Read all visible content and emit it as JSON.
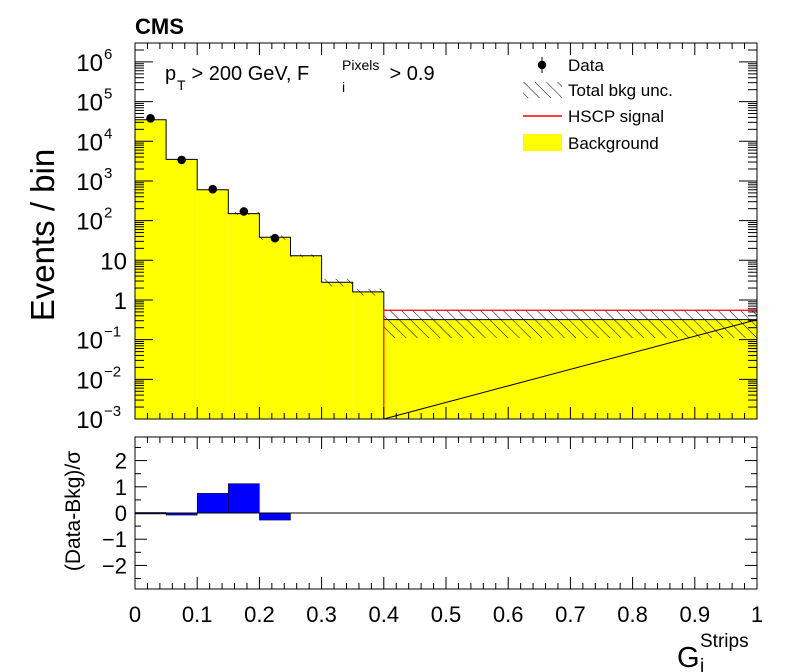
{
  "chart_data": [
    {
      "type": "bar",
      "panel": "main",
      "experiment_label": "CMS",
      "title": "",
      "annotation": {
        "prefix": "p",
        "prefix_sub": "T",
        "middle": " > 200 GeV, F",
        "f_sup": "Pixels",
        "f_sub": "i",
        "suffix": " > 0.9"
      },
      "ylabel": "Events / bin",
      "xlim": [
        0,
        1
      ],
      "ylim": [
        0.001,
        3000000
      ],
      "yscale": "log",
      "bin_edges": [
        0,
        0.05,
        0.1,
        0.15,
        0.2,
        0.25,
        0.3,
        0.35,
        0.4,
        1.0
      ],
      "legend_position": "top-right",
      "legend": [
        {
          "label": "Data",
          "kind": "marker"
        },
        {
          "label": "Total bkg unc.",
          "kind": "hatch"
        },
        {
          "label": "HSCP signal",
          "kind": "line"
        },
        {
          "label": "Background",
          "kind": "fill"
        }
      ],
      "y_ticks": [
        {
          "value": 0.001,
          "base": "10",
          "exp": "−3"
        },
        {
          "value": 0.01,
          "base": "10",
          "exp": "−2"
        },
        {
          "value": 0.1,
          "base": "10",
          "exp": "−1"
        },
        {
          "value": 1,
          "base": "1",
          "exp": ""
        },
        {
          "value": 10,
          "base": "10",
          "exp": ""
        },
        {
          "value": 100,
          "base": "10",
          "exp": "2"
        },
        {
          "value": 1000,
          "base": "10",
          "exp": "3"
        },
        {
          "value": 10000,
          "base": "10",
          "exp": "4"
        },
        {
          "value": 100000,
          "base": "10",
          "exp": "5"
        },
        {
          "value": 1000000,
          "base": "10",
          "exp": "6"
        }
      ],
      "series": [
        {
          "name": "Background",
          "kind": "hist",
          "color": "#ffff00",
          "values": [
            35000,
            3500,
            600,
            150,
            38,
            13,
            2.8,
            1.6,
            0.32
          ]
        },
        {
          "name": "Total bkg unc.",
          "kind": "band",
          "color": "#000000",
          "low": [
            35000,
            3500,
            600,
            140,
            33,
            12,
            2.2,
            1.3,
            0.11
          ],
          "high": [
            35000,
            3500,
            600,
            165,
            42,
            14,
            3.4,
            1.9,
            0.55
          ]
        },
        {
          "name": "HSCP signal",
          "kind": "line",
          "color": "#ff0000",
          "edges": [
            0.4,
            1.0
          ],
          "values": [
            0.55
          ]
        },
        {
          "name": "Data",
          "kind": "points",
          "color": "#000000",
          "x": [
            0.025,
            0.075,
            0.125,
            0.175,
            0.225
          ],
          "y": [
            38000,
            3400,
            620,
            170,
            36
          ]
        }
      ]
    },
    {
      "type": "bar",
      "panel": "ratio",
      "ylabel": "(Data-Bkg)/σ",
      "xlabel": {
        "base": "G",
        "sub": "i",
        "sup": "Strips"
      },
      "xlim": [
        0,
        1
      ],
      "ylim": [
        -2.9,
        2.9
      ],
      "x_ticks": [
        "0",
        "0.1",
        "0.2",
        "0.3",
        "0.4",
        "0.5",
        "0.6",
        "0.7",
        "0.8",
        "0.9",
        "1"
      ],
      "y_ticks": [
        "−2",
        "−1",
        "0",
        "1",
        "2"
      ],
      "bin_edges": [
        0,
        0.05,
        0.1,
        0.15,
        0.2,
        0.25
      ],
      "series": [
        {
          "name": "",
          "color": "#0000ff",
          "values": [
            0.02,
            -0.08,
            0.75,
            1.12,
            -0.27
          ]
        }
      ]
    }
  ]
}
